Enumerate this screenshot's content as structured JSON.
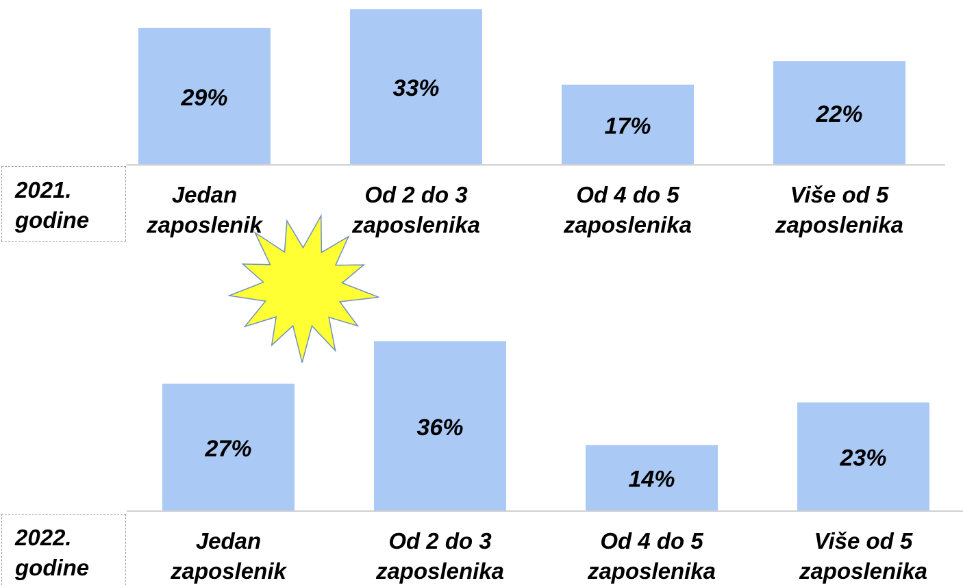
{
  "chart_data": [
    {
      "type": "bar",
      "year_label": "2021.\ngodine",
      "categories": [
        "Jedan\nzaposlenik",
        "Od 2 do 3\nzaposlenika",
        "Od 4 do 5\nzaposlenika",
        "Više od 5\nzaposlenika"
      ],
      "values": [
        29,
        33,
        17,
        22
      ],
      "value_labels": [
        "29%",
        "33%",
        "17%",
        "22%"
      ],
      "color": "#abc9f5",
      "ylim": [
        0,
        36
      ]
    },
    {
      "type": "bar",
      "year_label": "2022.\ngodine",
      "categories": [
        "Jedan\nzaposlenik",
        "Od 2 do 3\nzaposlenika",
        "Od 4 do 5\nzaposlenika",
        "Više od 5\nzaposlenika"
      ],
      "values": [
        27,
        36,
        14,
        23
      ],
      "value_labels": [
        "27%",
        "36%",
        "14%",
        "23%"
      ],
      "color": "#abc9f5",
      "ylim": [
        0,
        36
      ]
    }
  ]
}
